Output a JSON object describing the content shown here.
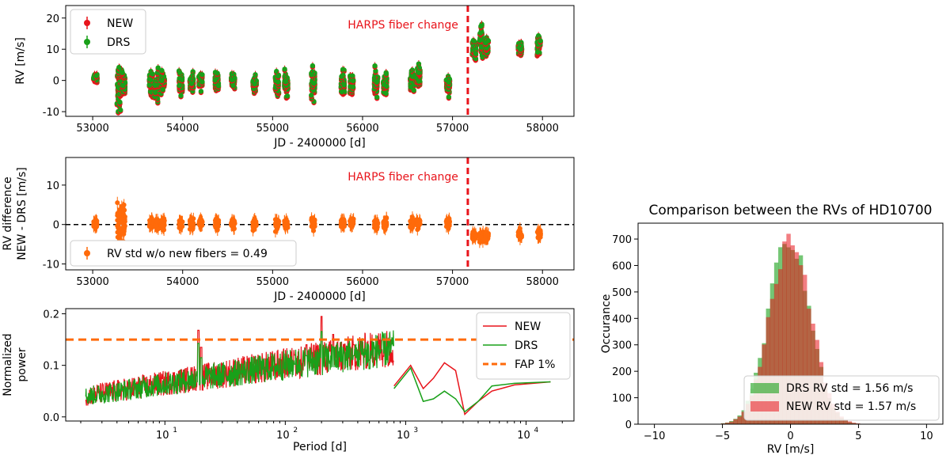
{
  "figure": {
    "colors": {
      "new": "#e8141b",
      "drs": "#19a019",
      "diff": "#ff6a0a",
      "fiber": "#e8141b",
      "fap": "#ff6a0a"
    }
  },
  "chart_data": [
    {
      "type": "scatter",
      "panel": "rv-timeseries",
      "xlabel": "JD - 2400000 [d]",
      "ylabel": "RV [m/s]",
      "xlim": [
        52700,
        58350
      ],
      "ylim": [
        -11.5,
        24
      ],
      "xticks": [
        53000,
        54000,
        55000,
        56000,
        57000,
        58000
      ],
      "yticks": [
        -10,
        0,
        10,
        20
      ],
      "annotation": {
        "text": "HARPS fiber change",
        "x": 57170
      },
      "legend": {
        "position": "top-left",
        "entries": [
          "NEW",
          "DRS"
        ]
      },
      "clusters": [
        {
          "x": 53030,
          "y": 1,
          "spread": 1.2
        },
        {
          "x": 53290,
          "y": -2,
          "spread": 5.5
        },
        {
          "x": 53340,
          "y": -1,
          "spread": 3.5
        },
        {
          "x": 53650,
          "y": -1,
          "spread": 3.0
        },
        {
          "x": 53710,
          "y": -2,
          "spread": 3.5
        },
        {
          "x": 53780,
          "y": 0,
          "spread": 2.0
        },
        {
          "x": 53980,
          "y": -1,
          "spread": 2.5
        },
        {
          "x": 54100,
          "y": -0.5,
          "spread": 2.0
        },
        {
          "x": 54200,
          "y": 0,
          "spread": 2.0
        },
        {
          "x": 54380,
          "y": 0,
          "spread": 2.0
        },
        {
          "x": 54560,
          "y": 0,
          "spread": 1.5
        },
        {
          "x": 54800,
          "y": -1,
          "spread": 2.5
        },
        {
          "x": 55050,
          "y": -1.5,
          "spread": 3.5
        },
        {
          "x": 55150,
          "y": -1,
          "spread": 2.5
        },
        {
          "x": 55450,
          "y": -1,
          "spread": 4.0
        },
        {
          "x": 55780,
          "y": -1,
          "spread": 3.0
        },
        {
          "x": 55880,
          "y": -1,
          "spread": 2.5
        },
        {
          "x": 56150,
          "y": -1,
          "spread": 3.0
        },
        {
          "x": 56250,
          "y": -1,
          "spread": 2.5
        },
        {
          "x": 56550,
          "y": 0,
          "spread": 2.5
        },
        {
          "x": 56620,
          "y": 1.5,
          "spread": 2.5
        },
        {
          "x": 56950,
          "y": -1,
          "spread": 2.5
        },
        {
          "x": 57240,
          "y": 10,
          "spread": 2.5
        },
        {
          "x": 57320,
          "y": 13,
          "spread": 3.5
        },
        {
          "x": 57380,
          "y": 11,
          "spread": 2.5
        },
        {
          "x": 57750,
          "y": 10,
          "spread": 2.0
        },
        {
          "x": 57960,
          "y": 11,
          "spread": 2.5
        }
      ]
    },
    {
      "type": "scatter",
      "panel": "rv-difference",
      "xlabel": "JD - 2400000 [d]",
      "ylabel": [
        "RV difference",
        "NEW - DRS [m/s]"
      ],
      "xlim": [
        52700,
        58350
      ],
      "ylim": [
        -11.5,
        17
      ],
      "xticks": [
        53000,
        54000,
        55000,
        56000,
        57000,
        58000
      ],
      "yticks": [
        -10,
        0,
        10
      ],
      "annotation": {
        "text": "HARPS fiber change",
        "x": 57170
      },
      "legend": {
        "position": "bottom-left",
        "entries": [
          "RV std w/o new fibers = 0.49"
        ]
      }
    },
    {
      "type": "line",
      "panel": "periodogram",
      "xscale": "log",
      "xlabel": "Period [d]",
      "ylabel": [
        "Normalized",
        "power"
      ],
      "xlim": [
        1.5,
        25000
      ],
      "ylim": [
        -0.008,
        0.21
      ],
      "xticks": [
        10,
        100,
        1000,
        10000
      ],
      "xticklabels": [
        "10",
        "10",
        "10",
        "10"
      ],
      "xtickexps": [
        "1",
        "2",
        "3",
        "4"
      ],
      "yticks": [
        0.0,
        0.1,
        0.2
      ],
      "yticklabels": [
        "0.0",
        "0.1",
        "0.2"
      ],
      "fap_level": 0.15,
      "legend": {
        "position": "top-right",
        "entries": [
          "NEW",
          "DRS",
          "FAP 1%"
        ]
      },
      "series": [
        {
          "name": "NEW",
          "x": [
            800,
            1100,
            1400,
            1700,
            2100,
            2600,
            3100,
            4000,
            5200,
            8000,
            16000
          ],
          "y": [
            0.06,
            0.1,
            0.055,
            0.075,
            0.105,
            0.09,
            0.005,
            0.03,
            0.05,
            0.062,
            0.068
          ]
        },
        {
          "name": "DRS",
          "x": [
            800,
            1100,
            1400,
            1700,
            2100,
            2600,
            3100,
            4000,
            5200,
            8000,
            16000
          ],
          "y": [
            0.055,
            0.095,
            0.03,
            0.035,
            0.05,
            0.035,
            0.01,
            0.03,
            0.06,
            0.065,
            0.068
          ]
        }
      ],
      "peaks": [
        {
          "period": 20,
          "power": 0.135
        },
        {
          "period": 19,
          "power": 0.168
        },
        {
          "period": 120,
          "power": 0.12
        },
        {
          "period": 200,
          "power": 0.195
        },
        {
          "period": 150,
          "power": 0.14
        },
        {
          "period": 370,
          "power": 0.14
        },
        {
          "period": 250,
          "power": 0.16
        },
        {
          "period": 500,
          "power": 0.11
        }
      ]
    },
    {
      "type": "bar",
      "panel": "histogram",
      "title": "Comparison between the RVs of HD10700",
      "xlabel": "RV [m/s]",
      "ylabel": "Occurance",
      "xlim": [
        -11.2,
        11.2
      ],
      "ylim": [
        0,
        760
      ],
      "xticks": [
        -10,
        -5,
        0,
        5,
        10
      ],
      "yticks": [
        0,
        100,
        200,
        300,
        400,
        500,
        600,
        700
      ],
      "bin_width": 0.3,
      "legend": {
        "position": "bottom-right",
        "entries": [
          "DRS RV std = 1.56 m/s",
          "NEW RV std = 1.57 m/s"
        ]
      },
      "series": [
        {
          "name": "DRS",
          "sigma": 1.56,
          "peak": 715,
          "mean": -0.1
        },
        {
          "name": "NEW",
          "sigma": 1.57,
          "peak": 705,
          "mean": 0.0
        }
      ]
    }
  ]
}
